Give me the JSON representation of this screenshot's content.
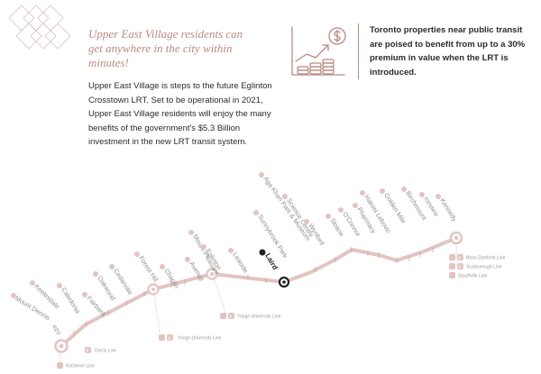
{
  "intro": {
    "headline": "Upper East Village residents can get anywhere in the city within minutes!",
    "body": "Upper East Village is steps to the future Eglinton Crosstown LRT. Set to be operational in 2021, Upper East Village residents will enjoy the many benefits of the government's $5.3 Billion investment in the new LRT transit system."
  },
  "callout": {
    "icon": "growth-chart-dollar-icon",
    "text": "Toronto properties near public transit are poised to benefit from up to a 30% premium in value when the LRT is introduced."
  },
  "transit_map": {
    "line_color": "#e2c4c1",
    "accent_color": "#b88a83",
    "highlight_station": "Laird",
    "stations": [
      "Mount Dennis",
      "Keelesdale",
      "Caledonia",
      "Fairbank",
      "Oakwood",
      "Cedarvale",
      "Forest Hill",
      "Chaplin",
      "Avenue",
      "Eglinton",
      "Mount Pleasant",
      "Leaside",
      "Laird",
      "Sunnybrook Park",
      "Science Centre",
      "Aga Khan Park & Museum",
      "Wynford",
      "Sloane",
      "O'Connor",
      "Pharmacy",
      "Hakimi Lebovic",
      "Golden Mile",
      "Birchmount",
      "Ionview",
      "Kennedy"
    ],
    "unlabeled_station": "ezo",
    "connections": [
      {
        "badge": "2",
        "label": "Bloor-Danforth Line"
      },
      {
        "badge": "3",
        "label": "Scarborough Line"
      },
      {
        "badge": "",
        "label": "Stouffville Line"
      },
      {
        "badge": "1",
        "label": "Yonge-University Line"
      },
      {
        "badge": "1",
        "label": "Yonge-University Line"
      },
      {
        "badge": "5",
        "label": "Dorris Line"
      },
      {
        "badge": "",
        "label": "Kitchener Line"
      }
    ]
  }
}
